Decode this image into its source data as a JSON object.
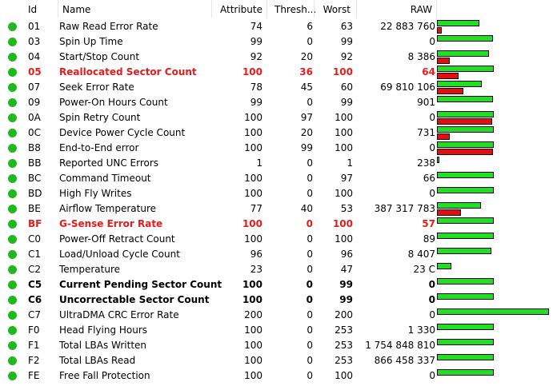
{
  "header": {
    "id": "Id",
    "name": "Name",
    "attribute": "Attribute",
    "threshold": "Thresh...",
    "worst": "Worst",
    "raw": "RAW"
  },
  "colors": {
    "ok": "#1fb81f",
    "bar_value": "#21e021",
    "bar_threshold": "#e80d0d",
    "warning_text": "#e51c1c"
  },
  "rows": [
    {
      "id": "01",
      "name": "Raw Read Error Rate",
      "attribute": "74",
      "threshold": "6",
      "worst": "63",
      "raw": "22 883 760",
      "style": ""
    },
    {
      "id": "03",
      "name": "Spin Up Time",
      "attribute": "99",
      "threshold": "0",
      "worst": "99",
      "raw": "0",
      "style": ""
    },
    {
      "id": "04",
      "name": "Start/Stop Count",
      "attribute": "92",
      "threshold": "20",
      "worst": "92",
      "raw": "8 386",
      "style": ""
    },
    {
      "id": "05",
      "name": "Reallocated Sector Count",
      "attribute": "100",
      "threshold": "36",
      "worst": "100",
      "raw": "64",
      "style": "red"
    },
    {
      "id": "07",
      "name": "Seek Error Rate",
      "attribute": "78",
      "threshold": "45",
      "worst": "60",
      "raw": "69 810 106",
      "style": ""
    },
    {
      "id": "09",
      "name": "Power-On Hours Count",
      "attribute": "99",
      "threshold": "0",
      "worst": "99",
      "raw": "901",
      "style": ""
    },
    {
      "id": "0A",
      "name": "Spin Retry Count",
      "attribute": "100",
      "threshold": "97",
      "worst": "100",
      "raw": "0",
      "style": ""
    },
    {
      "id": "0C",
      "name": "Device Power Cycle Count",
      "attribute": "100",
      "threshold": "20",
      "worst": "100",
      "raw": "731",
      "style": ""
    },
    {
      "id": "B8",
      "name": "End-to-End error",
      "attribute": "100",
      "threshold": "99",
      "worst": "100",
      "raw": "0",
      "style": ""
    },
    {
      "id": "BB",
      "name": "Reported UNC Errors",
      "attribute": "1",
      "threshold": "0",
      "worst": "1",
      "raw": "238",
      "style": ""
    },
    {
      "id": "BC",
      "name": "Command Timeout",
      "attribute": "100",
      "threshold": "0",
      "worst": "97",
      "raw": "66",
      "style": ""
    },
    {
      "id": "BD",
      "name": "High Fly Writes",
      "attribute": "100",
      "threshold": "0",
      "worst": "100",
      "raw": "0",
      "style": ""
    },
    {
      "id": "BE",
      "name": "Airflow Temperature",
      "attribute": "77",
      "threshold": "40",
      "worst": "53",
      "raw": "387 317 783",
      "style": ""
    },
    {
      "id": "BF",
      "name": "G-Sense Error Rate",
      "attribute": "100",
      "threshold": "0",
      "worst": "100",
      "raw": "57",
      "style": "red"
    },
    {
      "id": "C0",
      "name": "Power-Off Retract Count",
      "attribute": "100",
      "threshold": "0",
      "worst": "100",
      "raw": "89",
      "style": ""
    },
    {
      "id": "C1",
      "name": "Load/Unload Cycle Count",
      "attribute": "96",
      "threshold": "0",
      "worst": "96",
      "raw": "8 407",
      "style": ""
    },
    {
      "id": "C2",
      "name": "Temperature",
      "attribute": "23",
      "threshold": "0",
      "worst": "47",
      "raw": "23 C",
      "style": ""
    },
    {
      "id": "C5",
      "name": "Current Pending Sector Count",
      "attribute": "100",
      "threshold": "0",
      "worst": "99",
      "raw": "0",
      "style": "bold"
    },
    {
      "id": "C6",
      "name": "Uncorrectable Sector Count",
      "attribute": "100",
      "threshold": "0",
      "worst": "99",
      "raw": "0",
      "style": "bold"
    },
    {
      "id": "C7",
      "name": "UltraDMA CRC Error Rate",
      "attribute": "200",
      "threshold": "0",
      "worst": "200",
      "raw": "0",
      "style": ""
    },
    {
      "id": "F0",
      "name": "Head Flying Hours",
      "attribute": "100",
      "threshold": "0",
      "worst": "253",
      "raw": "1 330",
      "style": ""
    },
    {
      "id": "F1",
      "name": "Total LBAs Written",
      "attribute": "100",
      "threshold": "0",
      "worst": "253",
      "raw": "1 754 848 810",
      "style": ""
    },
    {
      "id": "F2",
      "name": "Total LBAs Read",
      "attribute": "100",
      "threshold": "0",
      "worst": "253",
      "raw": "866 458 337",
      "style": ""
    },
    {
      "id": "FE",
      "name": "Free Fall Protection",
      "attribute": "100",
      "threshold": "0",
      "worst": "100",
      "raw": "0",
      "style": ""
    }
  ]
}
